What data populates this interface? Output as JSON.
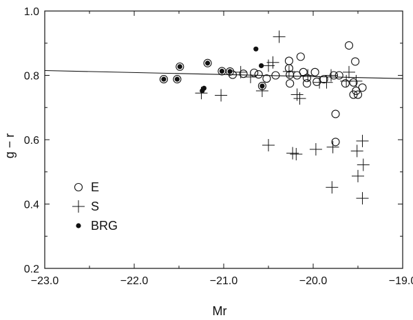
{
  "chart_data": {
    "type": "scatter",
    "title": "",
    "xlabel": "Mr",
    "ylabel": "g − r",
    "xlim": [
      -23.0,
      -19.0
    ],
    "ylim": [
      0.2,
      1.0
    ],
    "xticks": [
      -23.0,
      -22.0,
      -21.0,
      -20.0,
      -19.0
    ],
    "xtick_labels": [
      "−23.0",
      "−22.0",
      "−21.0",
      "−20.0",
      "−19.0"
    ],
    "yticks": [
      0.2,
      0.4,
      0.6,
      0.8,
      1.0
    ],
    "ytick_labels": [
      "0.2",
      "0.4",
      "0.6",
      "0.8",
      "1.0"
    ],
    "grid": false,
    "legend_position": "lower-left",
    "fit_line": {
      "x": [
        -23.0,
        -19.0
      ],
      "y": [
        0.815,
        0.79
      ]
    },
    "series": [
      {
        "name": "E",
        "marker": "open-circle",
        "color": "#111111",
        "points": [
          [
            -21.67,
            0.788
          ],
          [
            -21.52,
            0.788
          ],
          [
            -21.49,
            0.827
          ],
          [
            -21.18,
            0.838
          ],
          [
            -21.02,
            0.813
          ],
          [
            -20.93,
            0.812
          ],
          [
            -20.9,
            0.802
          ],
          [
            -20.78,
            0.805
          ],
          [
            -20.66,
            0.808
          ],
          [
            -20.61,
            0.803
          ],
          [
            -20.57,
            0.767
          ],
          [
            -20.52,
            0.79
          ],
          [
            -20.42,
            0.8
          ],
          [
            -20.27,
            0.845
          ],
          [
            -20.27,
            0.822
          ],
          [
            -20.26,
            0.802
          ],
          [
            -20.26,
            0.775
          ],
          [
            -20.14,
            0.858
          ],
          [
            -20.18,
            0.8
          ],
          [
            -20.11,
            0.81
          ],
          [
            -20.07,
            0.792
          ],
          [
            -20.07,
            0.775
          ],
          [
            -19.98,
            0.81
          ],
          [
            -19.96,
            0.78
          ],
          [
            -19.88,
            0.788
          ],
          [
            -19.77,
            0.8
          ],
          [
            -19.71,
            0.8
          ],
          [
            -19.64,
            0.775
          ],
          [
            -19.6,
            0.893
          ],
          [
            -19.53,
            0.843
          ],
          [
            -19.55,
            0.778
          ],
          [
            -19.52,
            0.752
          ],
          [
            -19.55,
            0.74
          ],
          [
            -19.5,
            0.74
          ],
          [
            -19.45,
            0.762
          ],
          [
            -19.75,
            0.68
          ],
          [
            -19.75,
            0.593
          ]
        ]
      },
      {
        "name": "S",
        "marker": "plus",
        "color": "#111111",
        "points": [
          [
            -21.25,
            0.745
          ],
          [
            -21.03,
            0.738
          ],
          [
            -20.81,
            0.81
          ],
          [
            -20.7,
            0.795
          ],
          [
            -20.57,
            0.752
          ],
          [
            -20.5,
            0.83
          ],
          [
            -20.45,
            0.84
          ],
          [
            -20.38,
            0.92
          ],
          [
            -20.27,
            0.812
          ],
          [
            -20.18,
            0.74
          ],
          [
            -20.15,
            0.728
          ],
          [
            -20.06,
            0.8
          ],
          [
            -19.93,
            0.778
          ],
          [
            -19.85,
            0.778
          ],
          [
            -19.8,
            0.8
          ],
          [
            -19.63,
            0.782
          ],
          [
            -19.6,
            0.81
          ],
          [
            -19.52,
            0.782
          ],
          [
            -20.5,
            0.583
          ],
          [
            -20.23,
            0.558
          ],
          [
            -20.19,
            0.555
          ],
          [
            -19.97,
            0.57
          ],
          [
            -19.78,
            0.577
          ],
          [
            -19.45,
            0.596
          ],
          [
            -19.51,
            0.565
          ],
          [
            -19.44,
            0.522
          ],
          [
            -19.5,
            0.487
          ],
          [
            -19.79,
            0.452
          ],
          [
            -19.45,
            0.418
          ]
        ]
      },
      {
        "name": "BRG",
        "marker": "filled-circle",
        "color": "#111111",
        "points": [
          [
            -21.67,
            0.788
          ],
          [
            -21.52,
            0.788
          ],
          [
            -21.49,
            0.827
          ],
          [
            -21.18,
            0.838
          ],
          [
            -21.02,
            0.813
          ],
          [
            -20.93,
            0.812
          ],
          [
            -21.24,
            0.752
          ],
          [
            -21.22,
            0.76
          ],
          [
            -20.64,
            0.882
          ],
          [
            -20.57,
            0.767
          ],
          [
            -20.58,
            0.83
          ]
        ]
      }
    ]
  }
}
